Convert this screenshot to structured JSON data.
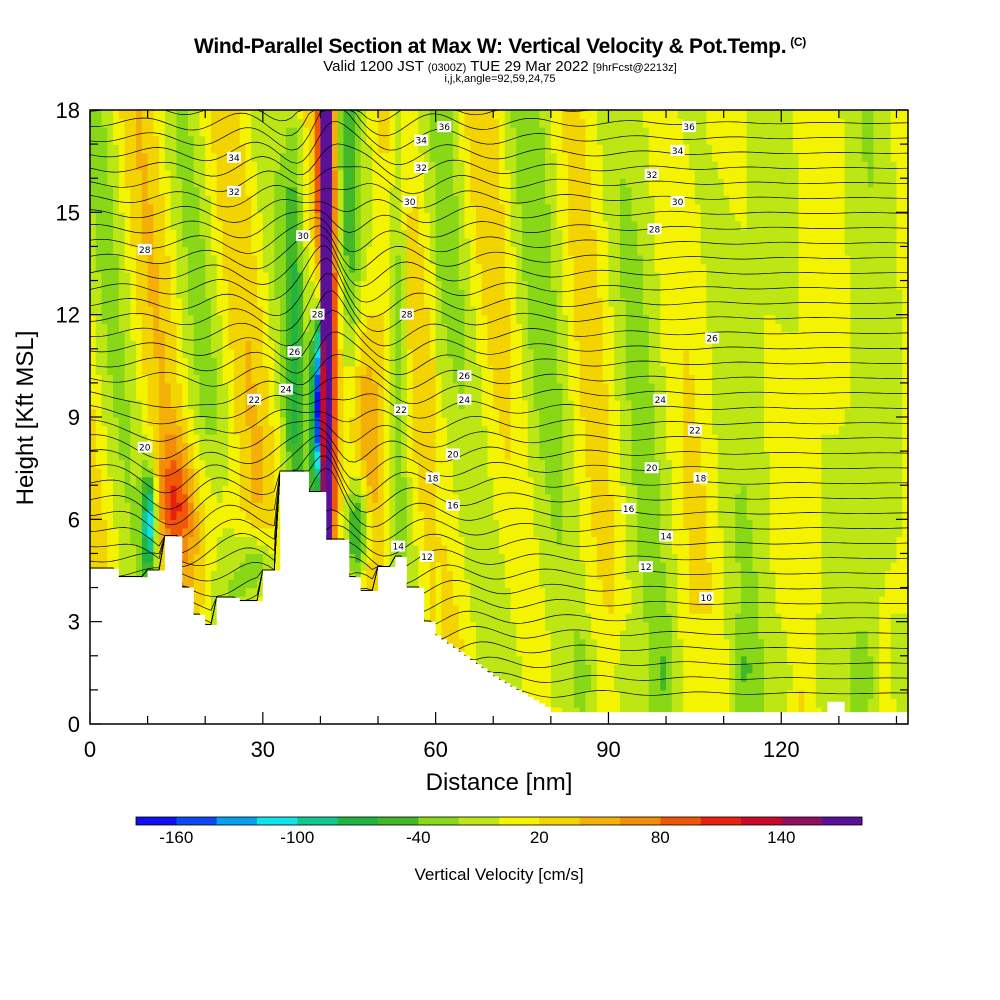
{
  "title": {
    "main": "Wind-Parallel Section at Max W: Vertical Velocity & Pot.Temp.",
    "copyright": "(C)",
    "valid_prefix": "Valid 1200 JST",
    "valid_zulu": "(0300Z)",
    "valid_date": "TUE 29 Mar 2022",
    "forecast": "[9hrFcst@2213z]",
    "indices": "i,j,k,angle=92,59,24,75"
  },
  "chart_data": {
    "type": "heatmap",
    "xlabel": "Distance [nm]",
    "ylabel": "Height [Kft MSL]",
    "xlim": [
      0,
      142
    ],
    "ylim": [
      0,
      18
    ],
    "x_ticks": [
      "0",
      "30",
      "60",
      "90",
      "120"
    ],
    "y_ticks": [
      "0",
      "3",
      "6",
      "9",
      "12",
      "15",
      "18"
    ],
    "colorbar": {
      "label": "Vertical Velocity [cm/s]",
      "tick_labels": [
        "-160",
        "-100",
        "-40",
        "20",
        "80",
        "140"
      ],
      "colors": [
        "#1010f0",
        "#0a48f2",
        "#08a0f0",
        "#10e4e8",
        "#10c890",
        "#20b440",
        "#42b828",
        "#88d818",
        "#bce614",
        "#f4f400",
        "#f4d400",
        "#f4b008",
        "#f48c08",
        "#f05808",
        "#e82010",
        "#c80a28",
        "#901060",
        "#5a1098"
      ]
    },
    "contour_labels": [
      {
        "value": "36",
        "x": 61.5,
        "y": 17.5
      },
      {
        "value": "34",
        "x": 57.5,
        "y": 17.1
      },
      {
        "value": "32",
        "x": 57.5,
        "y": 16.3
      },
      {
        "value": "34",
        "x": 25,
        "y": 16.6
      },
      {
        "value": "32",
        "x": 25,
        "y": 15.6
      },
      {
        "value": "30",
        "x": 37,
        "y": 14.3
      },
      {
        "value": "30",
        "x": 55.5,
        "y": 15.3
      },
      {
        "value": "28",
        "x": 9.5,
        "y": 13.9
      },
      {
        "value": "28",
        "x": 39.5,
        "y": 12.0
      },
      {
        "value": "28",
        "x": 55,
        "y": 12.0
      },
      {
        "value": "26",
        "x": 35.5,
        "y": 10.9
      },
      {
        "value": "24",
        "x": 34,
        "y": 9.8
      },
      {
        "value": "22",
        "x": 28.5,
        "y": 9.5
      },
      {
        "value": "22",
        "x": 54,
        "y": 9.2
      },
      {
        "value": "26",
        "x": 65,
        "y": 10.2
      },
      {
        "value": "24",
        "x": 65,
        "y": 9.5
      },
      {
        "value": "20",
        "x": 9.5,
        "y": 8.1
      },
      {
        "value": "20",
        "x": 63,
        "y": 7.9
      },
      {
        "value": "18",
        "x": 59.5,
        "y": 7.2
      },
      {
        "value": "16",
        "x": 63,
        "y": 6.4
      },
      {
        "value": "14",
        "x": 53.5,
        "y": 5.2
      },
      {
        "value": "12",
        "x": 58.5,
        "y": 4.9
      },
      {
        "value": "36",
        "x": 104,
        "y": 17.5
      },
      {
        "value": "34",
        "x": 102,
        "y": 16.8
      },
      {
        "value": "32",
        "x": 97.5,
        "y": 16.1
      },
      {
        "value": "30",
        "x": 102,
        "y": 15.3
      },
      {
        "value": "28",
        "x": 98,
        "y": 14.5
      },
      {
        "value": "26",
        "x": 108,
        "y": 11.3
      },
      {
        "value": "24",
        "x": 99,
        "y": 9.5
      },
      {
        "value": "22",
        "x": 105,
        "y": 8.6
      },
      {
        "value": "20",
        "x": 97.5,
        "y": 7.5
      },
      {
        "value": "18",
        "x": 106,
        "y": 7.2
      },
      {
        "value": "16",
        "x": 93.5,
        "y": 6.3
      },
      {
        "value": "14",
        "x": 100,
        "y": 5.5
      },
      {
        "value": "12",
        "x": 96.5,
        "y": 4.6
      },
      {
        "value": "10",
        "x": 107,
        "y": 3.7
      }
    ]
  }
}
